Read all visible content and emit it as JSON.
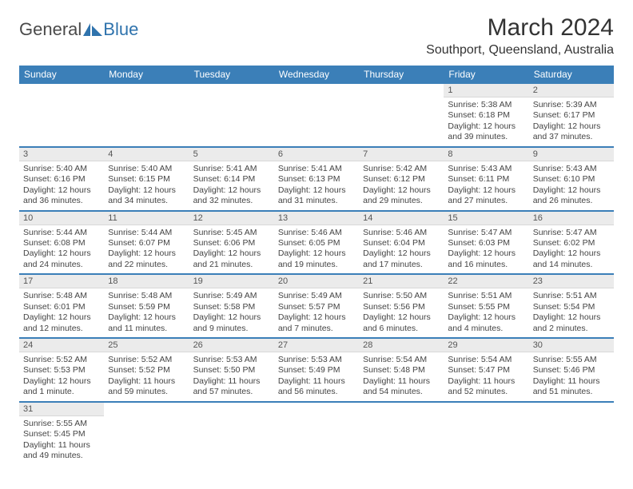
{
  "logo": {
    "text1": "General",
    "text2": "Blue",
    "accent": "#2f73ad"
  },
  "header": {
    "title": "March 2024",
    "location": "Southport, Queensland, Australia"
  },
  "weekdays": [
    "Sunday",
    "Monday",
    "Tuesday",
    "Wednesday",
    "Thursday",
    "Friday",
    "Saturday"
  ],
  "colors": {
    "header_bg": "#3b7fb8",
    "header_fg": "#ffffff",
    "daynum_bg": "#ebebeb",
    "rule": "#3b7fb8"
  },
  "weeks": [
    [
      null,
      null,
      null,
      null,
      null,
      {
        "n": "1",
        "sunrise": "5:38 AM",
        "sunset": "6:18 PM",
        "day_h": 12,
        "day_m": 39
      },
      {
        "n": "2",
        "sunrise": "5:39 AM",
        "sunset": "6:17 PM",
        "day_h": 12,
        "day_m": 37
      }
    ],
    [
      {
        "n": "3",
        "sunrise": "5:40 AM",
        "sunset": "6:16 PM",
        "day_h": 12,
        "day_m": 36
      },
      {
        "n": "4",
        "sunrise": "5:40 AM",
        "sunset": "6:15 PM",
        "day_h": 12,
        "day_m": 34
      },
      {
        "n": "5",
        "sunrise": "5:41 AM",
        "sunset": "6:14 PM",
        "day_h": 12,
        "day_m": 32
      },
      {
        "n": "6",
        "sunrise": "5:41 AM",
        "sunset": "6:13 PM",
        "day_h": 12,
        "day_m": 31
      },
      {
        "n": "7",
        "sunrise": "5:42 AM",
        "sunset": "6:12 PM",
        "day_h": 12,
        "day_m": 29
      },
      {
        "n": "8",
        "sunrise": "5:43 AM",
        "sunset": "6:11 PM",
        "day_h": 12,
        "day_m": 27
      },
      {
        "n": "9",
        "sunrise": "5:43 AM",
        "sunset": "6:10 PM",
        "day_h": 12,
        "day_m": 26
      }
    ],
    [
      {
        "n": "10",
        "sunrise": "5:44 AM",
        "sunset": "6:08 PM",
        "day_h": 12,
        "day_m": 24
      },
      {
        "n": "11",
        "sunrise": "5:44 AM",
        "sunset": "6:07 PM",
        "day_h": 12,
        "day_m": 22
      },
      {
        "n": "12",
        "sunrise": "5:45 AM",
        "sunset": "6:06 PM",
        "day_h": 12,
        "day_m": 21
      },
      {
        "n": "13",
        "sunrise": "5:46 AM",
        "sunset": "6:05 PM",
        "day_h": 12,
        "day_m": 19
      },
      {
        "n": "14",
        "sunrise": "5:46 AM",
        "sunset": "6:04 PM",
        "day_h": 12,
        "day_m": 17
      },
      {
        "n": "15",
        "sunrise": "5:47 AM",
        "sunset": "6:03 PM",
        "day_h": 12,
        "day_m": 16
      },
      {
        "n": "16",
        "sunrise": "5:47 AM",
        "sunset": "6:02 PM",
        "day_h": 12,
        "day_m": 14
      }
    ],
    [
      {
        "n": "17",
        "sunrise": "5:48 AM",
        "sunset": "6:01 PM",
        "day_h": 12,
        "day_m": 12
      },
      {
        "n": "18",
        "sunrise": "5:48 AM",
        "sunset": "5:59 PM",
        "day_h": 12,
        "day_m": 11
      },
      {
        "n": "19",
        "sunrise": "5:49 AM",
        "sunset": "5:58 PM",
        "day_h": 12,
        "day_m": 9
      },
      {
        "n": "20",
        "sunrise": "5:49 AM",
        "sunset": "5:57 PM",
        "day_h": 12,
        "day_m": 7
      },
      {
        "n": "21",
        "sunrise": "5:50 AM",
        "sunset": "5:56 PM",
        "day_h": 12,
        "day_m": 6
      },
      {
        "n": "22",
        "sunrise": "5:51 AM",
        "sunset": "5:55 PM",
        "day_h": 12,
        "day_m": 4
      },
      {
        "n": "23",
        "sunrise": "5:51 AM",
        "sunset": "5:54 PM",
        "day_h": 12,
        "day_m": 2
      }
    ],
    [
      {
        "n": "24",
        "sunrise": "5:52 AM",
        "sunset": "5:53 PM",
        "day_h": 12,
        "day_m": 1
      },
      {
        "n": "25",
        "sunrise": "5:52 AM",
        "sunset": "5:52 PM",
        "day_h": 11,
        "day_m": 59
      },
      {
        "n": "26",
        "sunrise": "5:53 AM",
        "sunset": "5:50 PM",
        "day_h": 11,
        "day_m": 57
      },
      {
        "n": "27",
        "sunrise": "5:53 AM",
        "sunset": "5:49 PM",
        "day_h": 11,
        "day_m": 56
      },
      {
        "n": "28",
        "sunrise": "5:54 AM",
        "sunset": "5:48 PM",
        "day_h": 11,
        "day_m": 54
      },
      {
        "n": "29",
        "sunrise": "5:54 AM",
        "sunset": "5:47 PM",
        "day_h": 11,
        "day_m": 52
      },
      {
        "n": "30",
        "sunrise": "5:55 AM",
        "sunset": "5:46 PM",
        "day_h": 11,
        "day_m": 51
      }
    ],
    [
      {
        "n": "31",
        "sunrise": "5:55 AM",
        "sunset": "5:45 PM",
        "day_h": 11,
        "day_m": 49
      },
      null,
      null,
      null,
      null,
      null,
      null
    ]
  ],
  "labels": {
    "sunrise": "Sunrise:",
    "sunset": "Sunset:",
    "daylight": "Daylight:"
  }
}
